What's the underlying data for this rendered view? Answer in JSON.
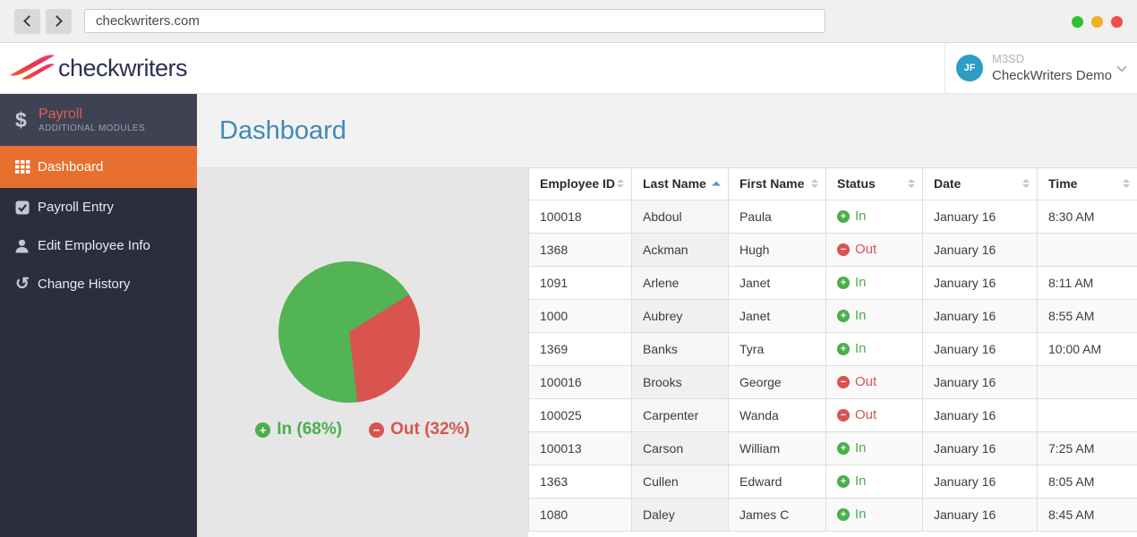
{
  "browser": {
    "url": "checkwriters.com",
    "traffic_lights": [
      "#2fc12f",
      "#f2b01e",
      "#ef4d4d"
    ]
  },
  "header": {
    "logo_text": "checkwriters",
    "account_code": "M3SD",
    "account_name": "CheckWriters Demo",
    "avatar_initials": "JF"
  },
  "sidebar": {
    "module": {
      "label": "Payroll",
      "sublabel": "ADDITIONAL MODULES"
    },
    "items": [
      {
        "label": "Dashboard",
        "icon": "grid-icon",
        "active": true
      },
      {
        "label": "Payroll Entry",
        "icon": "check-square-icon",
        "active": false
      },
      {
        "label": "Edit Employee Info",
        "icon": "person-icon",
        "active": false
      },
      {
        "label": "Change History",
        "icon": "history-icon",
        "active": false
      }
    ],
    "active_color": "#e8702e"
  },
  "main": {
    "title": "Dashboard"
  },
  "chart_data": {
    "type": "pie",
    "title": "",
    "labels": [
      "In",
      "Out"
    ],
    "values": [
      68,
      32
    ],
    "colors": [
      "#52b455",
      "#d9534f"
    ],
    "legend": [
      "In (68%)",
      "Out (32%)"
    ],
    "legend_position": "bottom",
    "rotation_deg": 58
  },
  "table": {
    "columns": [
      {
        "label": "Employee ID",
        "sort": "none"
      },
      {
        "label": "Last Name",
        "sort": "asc"
      },
      {
        "label": "First Name",
        "sort": "none"
      },
      {
        "label": "Status",
        "sort": "none"
      },
      {
        "label": "Date",
        "sort": "none"
      },
      {
        "label": "Time",
        "sort": "none"
      }
    ],
    "status_colors": {
      "In": "#4cae4c",
      "Out": "#d9534f"
    },
    "rows": [
      {
        "employee_id": "100018",
        "last_name": "Abdoul",
        "first_name": "Paula",
        "status": "In",
        "date": "January 16",
        "time": "8:30 AM"
      },
      {
        "employee_id": "1368",
        "last_name": "Ackman",
        "first_name": "Hugh",
        "status": "Out",
        "date": "January 16",
        "time": ""
      },
      {
        "employee_id": "1091",
        "last_name": "Arlene",
        "first_name": "Janet",
        "status": "In",
        "date": "January 16",
        "time": "8:11 AM"
      },
      {
        "employee_id": "1000",
        "last_name": "Aubrey",
        "first_name": "Janet",
        "status": "In",
        "date": "January 16",
        "time": "8:55 AM"
      },
      {
        "employee_id": "1369",
        "last_name": "Banks",
        "first_name": "Tyra",
        "status": "In",
        "date": "January 16",
        "time": "10:00 AM"
      },
      {
        "employee_id": "100016",
        "last_name": "Brooks",
        "first_name": "George",
        "status": "Out",
        "date": "January 16",
        "time": ""
      },
      {
        "employee_id": "100025",
        "last_name": "Carpenter",
        "first_name": "Wanda",
        "status": "Out",
        "date": "January 16",
        "time": ""
      },
      {
        "employee_id": "100013",
        "last_name": "Carson",
        "first_name": "William",
        "status": "In",
        "date": "January 16",
        "time": "7:25 AM"
      },
      {
        "employee_id": "1363",
        "last_name": "Cullen",
        "first_name": "Edward",
        "status": "In",
        "date": "January 16",
        "time": "8:05 AM"
      },
      {
        "employee_id": "1080",
        "last_name": "Daley",
        "first_name": "James C",
        "status": "In",
        "date": "January 16",
        "time": "8:45 AM"
      }
    ]
  }
}
